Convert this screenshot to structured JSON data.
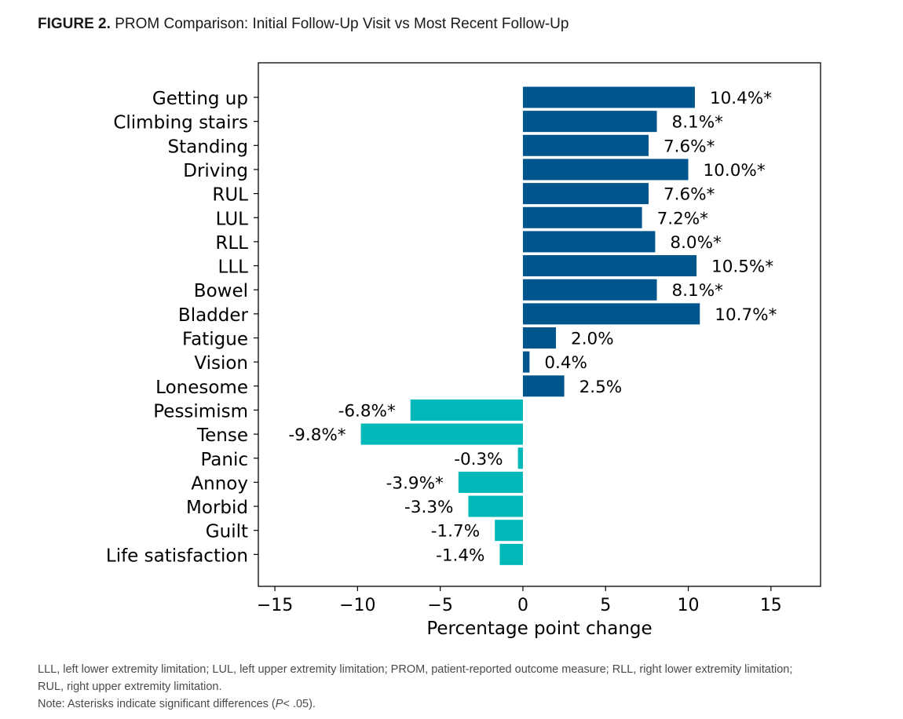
{
  "figure": {
    "label": "FIGURE 2.",
    "title": "PROM Comparison: Initial Follow-Up Visit vs Most Recent Follow-Up"
  },
  "colors": {
    "positive": "#00558c",
    "negative": "#00b8b8",
    "axis": "#000000"
  },
  "chart_data": {
    "type": "bar",
    "orientation": "horizontal",
    "xlabel": "Percentage point change",
    "xlim": [
      -16,
      18
    ],
    "xticks": [
      -15,
      -10,
      -5,
      0,
      5,
      10,
      15
    ],
    "xtick_labels": [
      "−15",
      "−10",
      "−5",
      "0",
      "5",
      "10",
      "15"
    ],
    "categories": [
      "Getting up",
      "Climbing stairs",
      "Standing",
      "Driving",
      "RUL",
      "LUL",
      "RLL",
      "LLL",
      "Bowel",
      "Bladder",
      "Fatigue",
      "Vision",
      "Lonesome",
      "Pessimism",
      "Tense",
      "Panic",
      "Annoy",
      "Morbid",
      "Guilt",
      "Life satisfaction"
    ],
    "values": [
      10.4,
      8.1,
      7.6,
      10.0,
      7.6,
      7.2,
      8.0,
      10.5,
      8.1,
      10.7,
      2.0,
      0.4,
      2.5,
      -6.8,
      -9.8,
      -0.3,
      -3.9,
      -3.3,
      -1.7,
      -1.4
    ],
    "data_labels": [
      "10.4%*",
      "8.1%*",
      "7.6%*",
      "10.0%*",
      "7.6%*",
      "7.2%*",
      "8.0%*",
      "10.5%*",
      "8.1%*",
      "10.7%*",
      "2.0%",
      "0.4%",
      "2.5%",
      "-6.8%*",
      "-9.8%*",
      "-0.3%",
      "-3.9%*",
      "-3.3%",
      "-1.7%",
      "-1.4%"
    ],
    "grid": false,
    "legend": "none"
  },
  "footnotes": {
    "line1": "LLL, left lower extremity limitation; LUL, left upper extremity limitation; PROM, patient-reported outcome measure; RLL, right lower extremity limitation;",
    "line2": "RUL, right upper extremity limitation.",
    "note_prefix": "Note: Asterisks indicate significant differences (",
    "note_p": "P",
    "note_suffix": "< .05)."
  }
}
